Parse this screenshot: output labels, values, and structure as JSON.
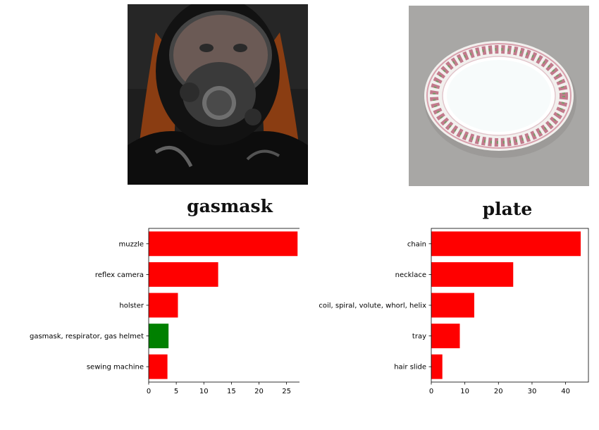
{
  "panels": [
    {
      "title": "gasmask",
      "image_subject": "person wearing a gas mask",
      "chart_data": {
        "type": "bar",
        "orientation": "horizontal",
        "categories": [
          "muzzle",
          "reflex camera",
          "holster",
          "gasmask, respirator, gas helmet",
          "sewing machine"
        ],
        "values": [
          27.0,
          12.6,
          5.3,
          3.6,
          3.4
        ],
        "colors": [
          "#ff0000",
          "#ff0000",
          "#ff0000",
          "#008000",
          "#ff0000"
        ],
        "xlim": [
          0,
          28.5
        ],
        "xticks": [
          0,
          5,
          10,
          15,
          20,
          25
        ],
        "xlabel": "",
        "ylabel": ""
      }
    },
    {
      "title": "plate",
      "image_subject": "decorative plate with rose border",
      "chart_data": {
        "type": "bar",
        "orientation": "horizontal",
        "categories": [
          "chain",
          "necklace",
          "coil, spiral, volute, whorl, helix",
          "tray",
          "hair slide"
        ],
        "values": [
          44.5,
          24.4,
          12.8,
          8.5,
          3.3
        ],
        "colors": [
          "#ff0000",
          "#ff0000",
          "#ff0000",
          "#ff0000",
          "#ff0000"
        ],
        "xlim": [
          0,
          46.8
        ],
        "xticks": [
          0,
          10,
          20,
          30,
          40
        ],
        "xlabel": "",
        "ylabel": ""
      }
    }
  ]
}
